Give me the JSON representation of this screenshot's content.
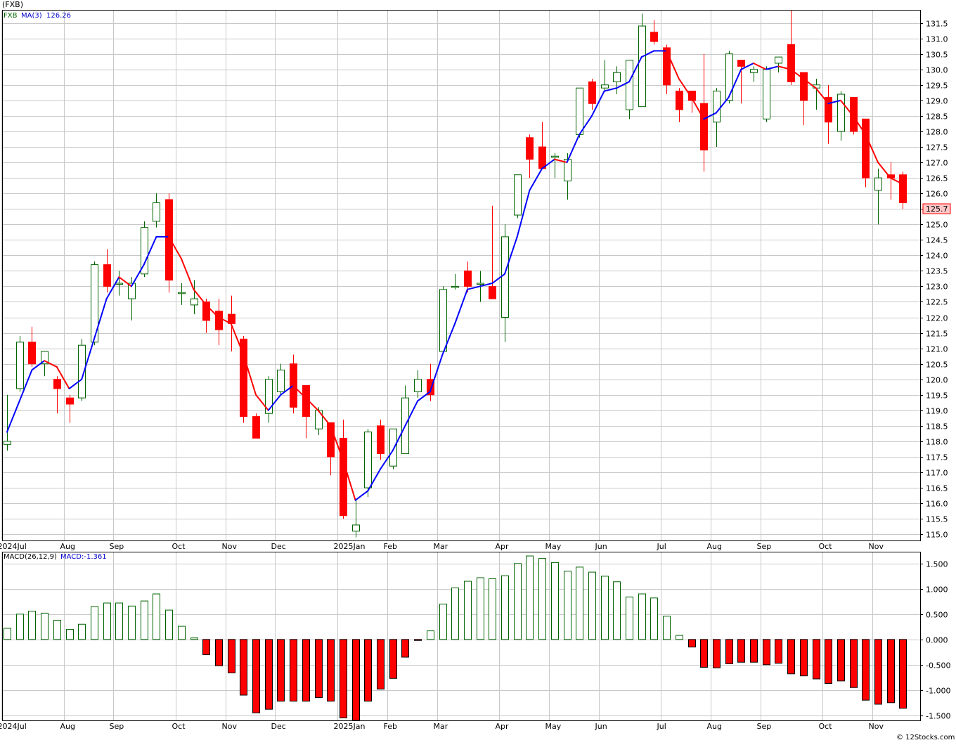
{
  "header": {
    "symbol": "(FXB)",
    "price_label": "FXB",
    "ma_label": "MA(3)",
    "ma_value": "126.26",
    "last_price_tag": "125.7"
  },
  "macd_header": {
    "label": "MACD(26,12,9)",
    "value_label": "MACD:-1.361"
  },
  "footer": {
    "credit": "© 12Stocks.com"
  },
  "colors": {
    "up": "#006400",
    "down": "#ff0000",
    "ma_up": "#0000ff",
    "ma_down": "#ff0000",
    "grid": "#c8c8c8",
    "tag_bg": "#ffc8c8"
  },
  "chart_data": [
    {
      "type": "candlestick",
      "series_name": "FXB",
      "ylim": [
        114.8,
        131.9
      ],
      "yticks": [
        "115.0",
        "115.5",
        "116.0",
        "116.5",
        "117.0",
        "117.5",
        "118.0",
        "118.5",
        "119.0",
        "119.5",
        "120.0",
        "120.5",
        "121.0",
        "121.5",
        "122.0",
        "122.5",
        "123.0",
        "123.5",
        "124.0",
        "124.5",
        "125.0",
        "125.5",
        "126.0",
        "126.5",
        "127.0",
        "127.5",
        "128.0",
        "128.5",
        "129.0",
        "129.5",
        "130.0",
        "130.5",
        "131.0",
        "131.5"
      ],
      "xticks": [
        {
          "label": "2024Jul",
          "i": 0
        },
        {
          "label": "Aug",
          "i": 5
        },
        {
          "label": "Sep",
          "i": 9
        },
        {
          "label": "Oct",
          "i": 14
        },
        {
          "label": "Nov",
          "i": 18
        },
        {
          "label": "Dec",
          "i": 22
        },
        {
          "label": "2025Jan",
          "i": 27
        },
        {
          "label": "Feb",
          "i": 31
        },
        {
          "label": "Mar",
          "i": 35
        },
        {
          "label": "Apr",
          "i": 40
        },
        {
          "label": "May",
          "i": 44
        },
        {
          "label": "Jun",
          "i": 48
        },
        {
          "label": "Jul",
          "i": 53
        },
        {
          "label": "Aug",
          "i": 57
        },
        {
          "label": "Sep",
          "i": 61
        },
        {
          "label": "Oct",
          "i": 66
        },
        {
          "label": "Nov",
          "i": 70
        }
      ],
      "ohlc": [
        [
          117.9,
          119.5,
          117.7,
          118.0
        ],
        [
          119.7,
          121.4,
          119.6,
          121.2
        ],
        [
          121.2,
          121.7,
          120.4,
          120.5
        ],
        [
          120.5,
          120.9,
          120.1,
          120.9
        ],
        [
          120.0,
          120.1,
          118.9,
          119.7
        ],
        [
          119.4,
          119.5,
          118.6,
          119.2
        ],
        [
          119.4,
          121.3,
          119.3,
          121.1
        ],
        [
          121.2,
          123.8,
          121.1,
          123.7
        ],
        [
          123.7,
          124.2,
          122.8,
          123.0
        ],
        [
          123.1,
          123.5,
          122.7,
          123.1
        ],
        [
          122.6,
          123.3,
          121.9,
          123.1
        ],
        [
          123.4,
          125.1,
          123.3,
          124.9
        ],
        [
          125.1,
          126.0,
          124.9,
          125.7
        ],
        [
          125.8,
          126.0,
          122.8,
          123.2
        ],
        [
          122.8,
          123.1,
          122.4,
          122.8
        ],
        [
          122.4,
          123.2,
          122.1,
          122.6
        ],
        [
          122.5,
          122.6,
          121.5,
          121.9
        ],
        [
          122.2,
          122.6,
          121.1,
          121.6
        ],
        [
          122.1,
          122.7,
          120.9,
          121.8
        ],
        [
          121.3,
          121.4,
          118.6,
          118.8
        ],
        [
          118.8,
          118.9,
          118.1,
          118.1
        ],
        [
          118.9,
          120.1,
          118.6,
          120.0
        ],
        [
          119.6,
          120.5,
          119.5,
          120.3
        ],
        [
          120.5,
          120.8,
          118.9,
          119.1
        ],
        [
          119.8,
          119.8,
          118.1,
          118.8
        ],
        [
          118.4,
          119.1,
          118.2,
          119.0
        ],
        [
          118.6,
          118.6,
          116.9,
          117.5
        ],
        [
          118.1,
          118.7,
          115.5,
          115.6
        ],
        [
          115.1,
          116.1,
          114.9,
          115.3
        ],
        [
          116.5,
          118.4,
          116.2,
          118.3
        ],
        [
          118.5,
          118.7,
          117.4,
          117.6
        ],
        [
          117.2,
          118.4,
          117.1,
          118.4
        ],
        [
          117.6,
          119.8,
          117.6,
          119.4
        ],
        [
          119.6,
          120.3,
          119.4,
          120.0
        ],
        [
          120.0,
          120.5,
          119.3,
          119.5
        ],
        [
          120.9,
          123.0,
          120.9,
          122.9
        ],
        [
          123.0,
          123.4,
          122.9,
          123.0
        ],
        [
          123.5,
          123.8,
          122.8,
          123.0
        ],
        [
          123.1,
          123.5,
          122.5,
          123.1
        ],
        [
          123.0,
          125.6,
          122.7,
          122.6
        ],
        [
          122.0,
          125.0,
          121.2,
          124.6
        ],
        [
          125.3,
          126.6,
          125.2,
          126.6
        ],
        [
          127.8,
          127.9,
          126.5,
          127.1
        ],
        [
          127.5,
          128.3,
          126.8,
          126.8
        ],
        [
          127.2,
          127.3,
          126.5,
          127.2
        ],
        [
          126.4,
          127.3,
          125.8,
          127.1
        ],
        [
          127.9,
          129.4,
          127.8,
          129.4
        ],
        [
          129.6,
          129.7,
          128.7,
          128.9
        ],
        [
          129.4,
          130.3,
          129.3,
          129.5
        ],
        [
          129.6,
          130.1,
          129.2,
          129.9
        ],
        [
          128.7,
          130.3,
          128.4,
          130.3
        ],
        [
          128.8,
          131.8,
          128.8,
          131.4
        ],
        [
          131.2,
          131.6,
          130.8,
          130.9
        ],
        [
          130.7,
          130.8,
          129.2,
          129.5
        ],
        [
          129.3,
          129.4,
          128.3,
          128.7
        ],
        [
          129.3,
          129.3,
          128.6,
          129.0
        ],
        [
          128.9,
          130.5,
          126.7,
          127.4
        ],
        [
          128.3,
          129.4,
          127.5,
          129.3
        ],
        [
          129.0,
          130.6,
          128.9,
          130.5
        ],
        [
          130.3,
          130.3,
          128.9,
          130.1
        ],
        [
          129.9,
          130.1,
          129.6,
          130.0
        ],
        [
          128.4,
          130.1,
          128.3,
          130.0
        ],
        [
          130.2,
          130.4,
          129.9,
          130.4
        ],
        [
          130.8,
          131.9,
          129.5,
          129.6
        ],
        [
          129.9,
          129.9,
          128.2,
          129.0
        ],
        [
          129.4,
          129.7,
          128.7,
          129.5
        ],
        [
          129.1,
          129.5,
          127.6,
          128.3
        ],
        [
          128.0,
          129.3,
          127.7,
          129.2
        ],
        [
          129.1,
          129.1,
          127.9,
          128.0
        ],
        [
          128.4,
          128.4,
          126.2,
          126.5
        ],
        [
          126.1,
          126.8,
          125.0,
          126.5
        ],
        [
          126.6,
          127.0,
          125.8,
          126.5
        ],
        [
          126.6,
          126.7,
          125.5,
          125.7
        ]
      ],
      "ma": [
        118.3,
        119.3,
        120.3,
        120.6,
        120.4,
        119.7,
        120.0,
        121.3,
        122.6,
        123.3,
        123.0,
        123.7,
        124.6,
        124.6,
        123.9,
        122.9,
        122.4,
        122.0,
        121.8,
        120.8,
        119.5,
        119.0,
        119.5,
        119.8,
        119.4,
        119.0,
        118.5,
        117.4,
        116.1,
        116.4,
        117.1,
        117.7,
        118.5,
        119.3,
        119.6,
        120.8,
        121.8,
        122.9,
        123.0,
        123.1,
        123.4,
        124.6,
        126.1,
        126.8,
        127.1,
        127.0,
        127.9,
        128.5,
        129.3,
        129.4,
        129.6,
        130.4,
        130.6,
        130.6,
        129.7,
        129.1,
        128.4,
        128.6,
        129.1,
        130.0,
        130.2,
        130.0,
        130.1,
        130.0,
        129.7,
        129.4,
        128.9,
        129.0,
        128.5,
        127.9,
        127.0,
        126.5,
        126.3
      ],
      "xlabel": "",
      "ylabel": ""
    },
    {
      "type": "bar",
      "series_name": "MACD(26,12,9)",
      "ylim": [
        -1.6,
        1.72
      ],
      "yticks": [
        "-1.500",
        "-1.000",
        "-0.500",
        "0.000",
        "0.500",
        "1.000",
        "1.500"
      ],
      "values": [
        0.22,
        0.5,
        0.56,
        0.52,
        0.38,
        0.2,
        0.3,
        0.65,
        0.72,
        0.72,
        0.66,
        0.76,
        0.9,
        0.58,
        0.26,
        0.03,
        -0.3,
        -0.52,
        -0.66,
        -1.1,
        -1.45,
        -1.38,
        -1.22,
        -1.22,
        -1.22,
        -1.15,
        -1.22,
        -1.55,
        -1.6,
        -1.22,
        -0.98,
        -0.77,
        -0.35,
        -0.02,
        0.17,
        0.7,
        1.02,
        1.15,
        1.22,
        1.2,
        1.26,
        1.5,
        1.65,
        1.6,
        1.52,
        1.35,
        1.43,
        1.33,
        1.25,
        1.14,
        0.84,
        0.9,
        0.82,
        0.46,
        0.08,
        -0.15,
        -0.55,
        -0.56,
        -0.48,
        -0.45,
        -0.45,
        -0.5,
        -0.47,
        -0.68,
        -0.72,
        -0.78,
        -0.87,
        -0.82,
        -0.95,
        -1.2,
        -1.28,
        -1.25,
        -1.36
      ]
    }
  ]
}
